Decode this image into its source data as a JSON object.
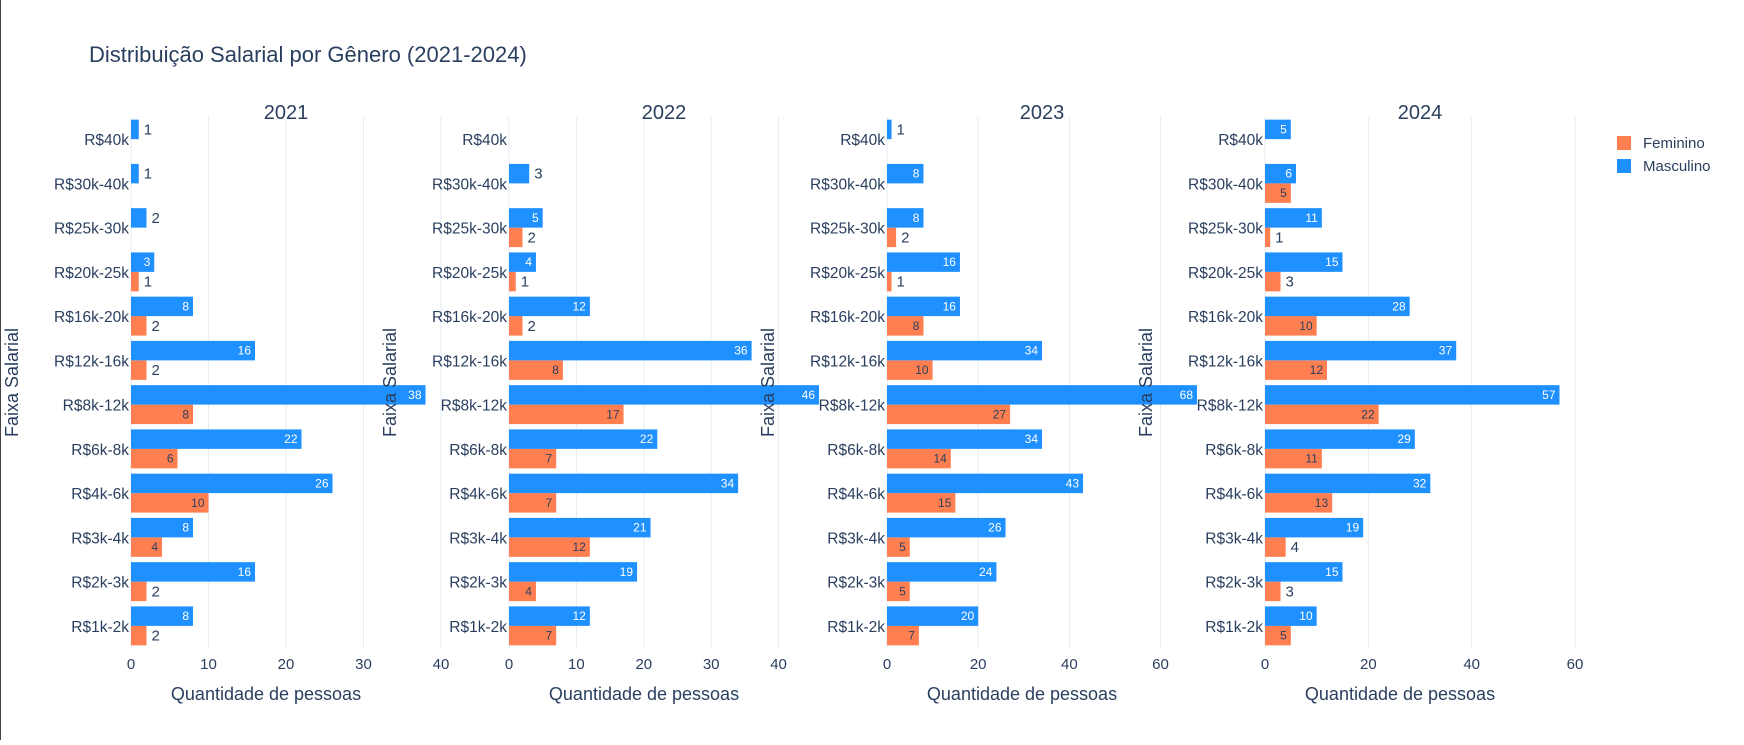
{
  "chart_data": {
    "type": "bar",
    "orientation": "horizontal",
    "title": "Distribuição Salarial por Gênero (2021-2024)",
    "ylabel": "Faixa Salarial",
    "xlabel": "Quantidade de pessoas",
    "categories": [
      "R$1k-2k",
      "R$2k-3k",
      "R$3k-4k",
      "R$4k-6k",
      "R$6k-8k",
      "R$8k-12k",
      "R$12k-16k",
      "R$16k-20k",
      "R$20k-25k",
      "R$25k-30k",
      "R$30k-40k",
      "R$40k"
    ],
    "legend": {
      "position": "top-right",
      "entries": [
        "Feminino",
        "Masculino"
      ]
    },
    "colors": {
      "Feminino": "#FF7F50",
      "Masculino": "#1E90FF"
    },
    "panels": [
      {
        "title": "2021",
        "xlim": [
          0,
          40
        ],
        "xticks": [
          0,
          10,
          20,
          30,
          40
        ],
        "series": [
          {
            "name": "Feminino",
            "values": [
              2,
              2,
              4,
              10,
              6,
              8,
              2,
              2,
              1,
              null,
              null,
              null
            ]
          },
          {
            "name": "Masculino",
            "values": [
              8,
              16,
              8,
              26,
              22,
              38,
              16,
              8,
              3,
              2,
              1,
              1
            ]
          }
        ]
      },
      {
        "title": "2022",
        "xlim": [
          0,
          46
        ],
        "xticks": [
          0,
          10,
          20,
          30,
          40
        ],
        "series": [
          {
            "name": "Feminino",
            "values": [
              7,
              4,
              12,
              7,
              7,
              17,
              8,
              2,
              1,
              2,
              null,
              null
            ]
          },
          {
            "name": "Masculino",
            "values": [
              12,
              19,
              21,
              34,
              22,
              46,
              36,
              12,
              4,
              5,
              3,
              null
            ]
          }
        ]
      },
      {
        "title": "2023",
        "xlim": [
          0,
          68
        ],
        "xticks": [
          0,
          20,
          40,
          60
        ],
        "series": [
          {
            "name": "Feminino",
            "values": [
              7,
              5,
              5,
              15,
              14,
              27,
              10,
              8,
              1,
              2,
              null,
              null
            ]
          },
          {
            "name": "Masculino",
            "values": [
              20,
              24,
              26,
              43,
              34,
              68,
              34,
              16,
              16,
              8,
              8,
              1
            ]
          }
        ]
      },
      {
        "title": "2024",
        "xlim": [
          0,
          60
        ],
        "xticks": [
          0,
          20,
          40,
          60
        ],
        "series": [
          {
            "name": "Feminino",
            "values": [
              5,
              3,
              4,
              13,
              11,
              22,
              12,
              10,
              3,
              1,
              5,
              null
            ]
          },
          {
            "name": "Masculino",
            "values": [
              10,
              15,
              19,
              32,
              29,
              57,
              37,
              28,
              15,
              11,
              6,
              5
            ]
          }
        ]
      }
    ]
  }
}
